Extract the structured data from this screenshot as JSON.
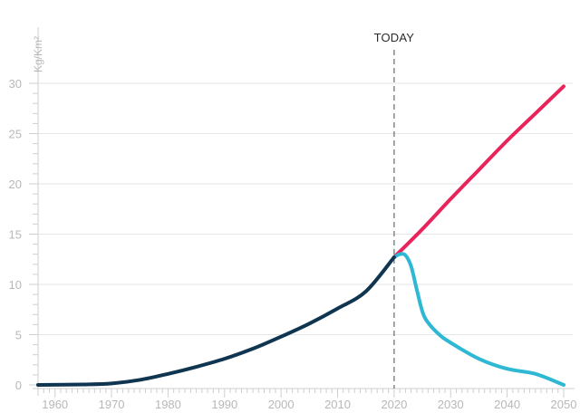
{
  "chart_data": {
    "type": "line",
    "ylabel": "Kg/Km²",
    "xlabel": "",
    "xlim": [
      1957,
      2050
    ],
    "ylim": [
      0,
      30
    ],
    "x_ticks": [
      1960,
      1970,
      1980,
      1990,
      2000,
      2010,
      2020,
      2030,
      2040,
      2050
    ],
    "y_ticks": [
      0,
      5,
      10,
      15,
      20,
      25,
      30
    ],
    "grid": "horizontal",
    "marker": {
      "x": 2020,
      "label": "TODAY"
    },
    "series": [
      {
        "color": "#0f3550",
        "points": [
          [
            1957,
            0.0
          ],
          [
            1965,
            0.05
          ],
          [
            1970,
            0.15
          ],
          [
            1975,
            0.5
          ],
          [
            1980,
            1.1
          ],
          [
            1985,
            1.8
          ],
          [
            1990,
            2.6
          ],
          [
            1995,
            3.6
          ],
          [
            2000,
            4.8
          ],
          [
            2005,
            6.1
          ],
          [
            2010,
            7.6
          ],
          [
            2015,
            9.3
          ],
          [
            2020,
            12.7
          ]
        ]
      },
      {
        "color": "#e8245a",
        "points": [
          [
            2020,
            12.7
          ],
          [
            2025,
            15.5
          ],
          [
            2030,
            18.5
          ],
          [
            2035,
            21.4
          ],
          [
            2040,
            24.3
          ],
          [
            2045,
            27.0
          ],
          [
            2050,
            29.7
          ]
        ]
      },
      {
        "color": "#2fb8d4",
        "points": [
          [
            2020,
            12.7
          ],
          [
            2021,
            13.0
          ],
          [
            2022,
            12.9
          ],
          [
            2023,
            11.8
          ],
          [
            2024,
            9.5
          ],
          [
            2025,
            7.3
          ],
          [
            2026,
            6.2
          ],
          [
            2028,
            5.0
          ],
          [
            2030,
            4.2
          ],
          [
            2035,
            2.6
          ],
          [
            2040,
            1.6
          ],
          [
            2045,
            1.1
          ],
          [
            2050,
            0.0
          ]
        ]
      }
    ]
  }
}
